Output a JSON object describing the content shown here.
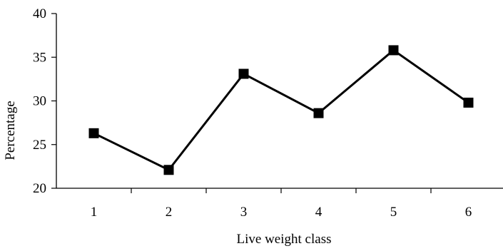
{
  "chart_data": {
    "type": "line",
    "title": "",
    "xlabel": "Live weight class",
    "ylabel": "Percentage",
    "categories": [
      "1",
      "2",
      "3",
      "4",
      "5",
      "6"
    ],
    "series": [
      {
        "values": [
          26.3,
          22.1,
          33.1,
          28.6,
          35.8,
          29.8
        ]
      }
    ],
    "ylim": [
      20,
      40
    ],
    "yticks": [
      "20",
      "25",
      "30",
      "35",
      "40"
    ],
    "grid": false,
    "legend": "none",
    "marker": "square",
    "line_color": "#000000"
  }
}
